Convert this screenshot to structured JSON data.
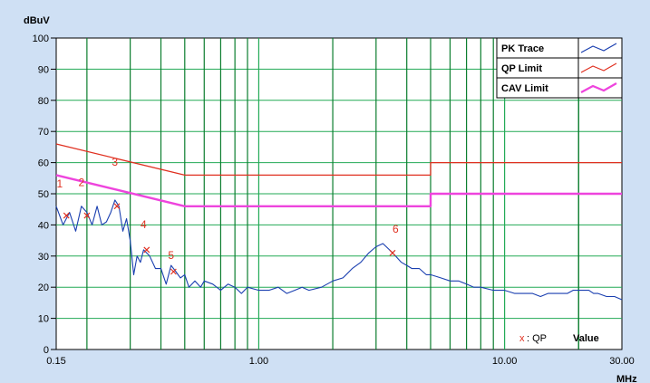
{
  "chart_data": {
    "type": "line",
    "y_unit": "dBuV",
    "x_unit": "MHz",
    "x_scale": "log",
    "xlim": [
      0.15,
      30
    ],
    "ylim": [
      0,
      100
    ],
    "y_ticks": [
      0,
      10,
      20,
      30,
      40,
      50,
      60,
      70,
      80,
      90,
      100
    ],
    "y_tick_labels": [
      "0",
      "10",
      "20",
      "30",
      "40",
      "50",
      "60",
      "70",
      "80",
      "90",
      "100"
    ],
    "x_tick_values": [
      0.15,
      1,
      10,
      30
    ],
    "x_tick_labels": [
      "0.15",
      "1.00",
      "10.00",
      "30.00"
    ],
    "grid": true,
    "legend_position": "top-right",
    "series": [
      {
        "name": "PK Trace",
        "color": "#1a3fb0",
        "x": [
          0.15,
          0.16,
          0.17,
          0.18,
          0.19,
          0.2,
          0.21,
          0.22,
          0.23,
          0.24,
          0.25,
          0.26,
          0.27,
          0.28,
          0.29,
          0.3,
          0.31,
          0.32,
          0.33,
          0.34,
          0.36,
          0.38,
          0.4,
          0.42,
          0.44,
          0.46,
          0.48,
          0.5,
          0.52,
          0.55,
          0.58,
          0.6,
          0.65,
          0.7,
          0.75,
          0.8,
          0.85,
          0.9,
          1.0,
          1.1,
          1.2,
          1.3,
          1.4,
          1.5,
          1.6,
          1.8,
          2.0,
          2.2,
          2.4,
          2.6,
          2.8,
          3.0,
          3.2,
          3.4,
          3.6,
          3.8,
          4.0,
          4.2,
          4.5,
          4.8,
          5.0,
          5.5,
          6.0,
          6.5,
          7.0,
          7.5,
          8.0,
          9.0,
          10.0,
          11.0,
          12.0,
          13.0,
          14.0,
          15.0,
          16.0,
          17.0,
          18.0,
          19.0,
          20.0,
          21.0,
          22.0,
          23.0,
          24.0,
          26.0,
          28.0,
          30.0
        ],
        "y": [
          46,
          40,
          44,
          38,
          46,
          44,
          40,
          46,
          40,
          41,
          44,
          48,
          46,
          38,
          42,
          35,
          24,
          30,
          28,
          32,
          30,
          26,
          26,
          21,
          27,
          25,
          23,
          24,
          20,
          22,
          20,
          22,
          21,
          19,
          21,
          20,
          18,
          20,
          19,
          19,
          20,
          18,
          19,
          20,
          19,
          20,
          22,
          23,
          26,
          28,
          31,
          33,
          34,
          32,
          30,
          28,
          27,
          26,
          26,
          24,
          24,
          23,
          22,
          22,
          21,
          20,
          20,
          19,
          19,
          18,
          18,
          18,
          17,
          18,
          18,
          18,
          18,
          19,
          19,
          19,
          19,
          18,
          18,
          17,
          17,
          16
        ]
      },
      {
        "name": "QP Limit",
        "color": "#e03020",
        "x": [
          0.15,
          0.5,
          0.5,
          5.0,
          5.0,
          30.0
        ],
        "y": [
          66,
          56,
          56,
          56,
          60,
          60
        ]
      },
      {
        "name": "CAV Limit",
        "color": "#ee44dd",
        "x": [
          0.15,
          0.5,
          0.5,
          5.0,
          5.0,
          30.0
        ],
        "y": [
          56,
          46,
          46,
          46,
          50,
          50
        ]
      }
    ],
    "annotations": [
      {
        "label": "1",
        "x": 0.155,
        "y": 52
      },
      {
        "label": "2",
        "x": 0.19,
        "y": 52.5
      },
      {
        "label": "3",
        "x": 0.26,
        "y": 59
      },
      {
        "label": "4",
        "x": 0.34,
        "y": 39
      },
      {
        "label": "5",
        "x": 0.44,
        "y": 29
      },
      {
        "label": "6",
        "x": 3.6,
        "y": 37.5
      }
    ],
    "qp_markers": [
      {
        "x": 0.165,
        "y": 43
      },
      {
        "x": 0.2,
        "y": 43
      },
      {
        "x": 0.265,
        "y": 46
      },
      {
        "x": 0.35,
        "y": 32
      },
      {
        "x": 0.45,
        "y": 25
      },
      {
        "x": 3.5,
        "y": 31
      }
    ],
    "marker_note": {
      "symbol": "x",
      "label": ": QP",
      "value_label": "Value"
    }
  }
}
